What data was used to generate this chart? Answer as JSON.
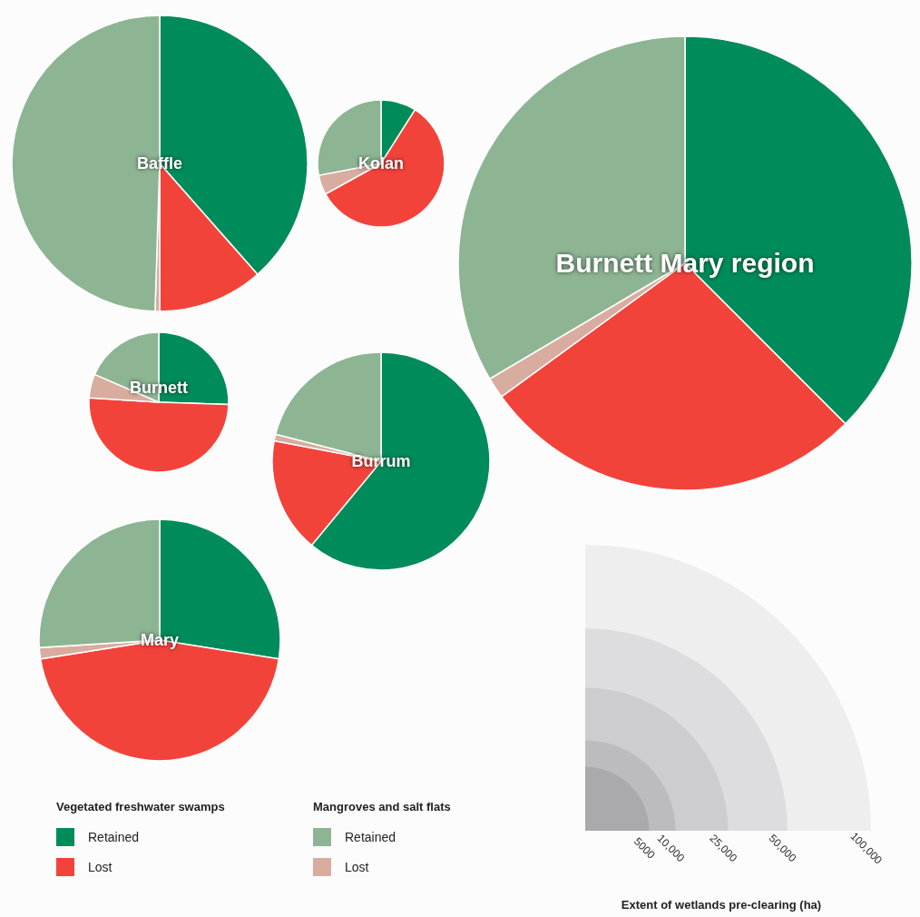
{
  "chart_data": [
    {
      "type": "pie",
      "title": "Baffle",
      "categories": [
        "Retained",
        "Lost",
        "Lost",
        "Retained"
      ],
      "values": [
        38.5,
        11.5,
        0.5,
        49.5
      ],
      "colors": [
        "#008c5a",
        "#f2433b",
        "#d9aca0",
        "#8db594"
      ],
      "legend": "bottom",
      "annotations": [
        "Vegetated freshwater swamps",
        "Mangroves and salt flats"
      ]
    },
    {
      "type": "pie",
      "title": "Kolan",
      "categories": [
        null,
        null,
        null,
        null
      ],
      "values": [
        9,
        58,
        5,
        28
      ],
      "colors": [
        "#008c5a",
        "#f2433b",
        "#d9aca0",
        "#8db594"
      ]
    },
    {
      "type": "pie",
      "title": "Burnett Mary region",
      "categories": [
        null,
        null,
        null,
        null
      ],
      "values": [
        37.5,
        27.5,
        1.5,
        33.5
      ],
      "colors": [
        "#008c5a",
        "#f2433b",
        "#d9aca0",
        "#8db594"
      ]
    },
    {
      "type": "pie",
      "title": "Burnett",
      "categories": [
        null,
        null,
        null,
        null
      ],
      "values": [
        25.5,
        50.5,
        5.5,
        18.5
      ],
      "colors": [
        "#008c5a",
        "#f2433b",
        "#d9aca0",
        "#8db594"
      ]
    },
    {
      "type": "pie",
      "title": "Burrum",
      "categories": [
        null,
        null,
        null,
        null
      ],
      "values": [
        61,
        17,
        1,
        21
      ],
      "colors": [
        "#008c5a",
        "#f2433b",
        "#d9aca0",
        "#8db594"
      ]
    },
    {
      "type": "pie",
      "title": "Mary",
      "categories": [
        null,
        null,
        null,
        null
      ],
      "values": [
        27.5,
        45,
        1.5,
        26
      ],
      "colors": [
        "#008c5a",
        "#f2433b",
        "#d9aca0",
        "#8db594"
      ]
    },
    {
      "type": "other",
      "xlabel": "Extent of wetlands pre-clearing (ha)",
      "values": [
        5000,
        10000,
        25000,
        50000,
        100000
      ],
      "value_labels": [
        "5000",
        "10,000",
        "25,000",
        "50,000",
        "100,000"
      ]
    }
  ]
}
